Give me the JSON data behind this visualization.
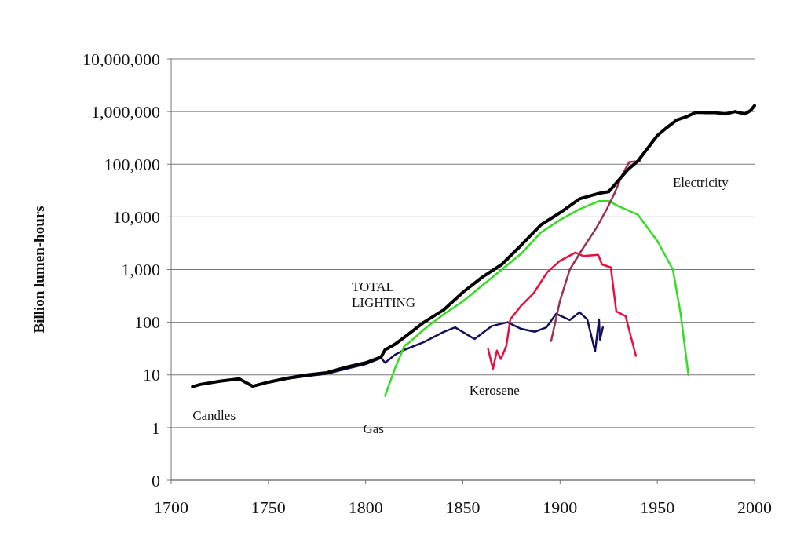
{
  "chart_data": {
    "type": "line",
    "ylabel": "Billion lumen-hours",
    "log": "y",
    "grid": "y",
    "marker": "none",
    "line_style": "solid",
    "xlim": [
      1700,
      2000
    ],
    "xticks": [
      1700,
      1750,
      1800,
      1850,
      1900,
      1950,
      2000
    ],
    "ylim": [
      0.1,
      10000000
    ],
    "yticks": [
      {
        "value": 0.1,
        "label": "0"
      },
      1,
      10,
      100,
      {
        "value": 1000,
        "label": "1,000"
      },
      {
        "value": 10000,
        "label": "10,000"
      },
      {
        "value": 100000,
        "label": "100,000"
      },
      {
        "value": 1000000,
        "label": "1,000,000"
      },
      {
        "value": 10000000,
        "label": "10,000,000"
      }
    ],
    "series": [
      {
        "name": "Candles",
        "color": "#10105a",
        "x": [
          1711,
          1715,
          1725,
          1735,
          1742,
          1750,
          1760,
          1770,
          1780,
          1790,
          1800,
          1808,
          1810,
          1815,
          1820,
          1830,
          1840,
          1846,
          1856,
          1865,
          1873,
          1880,
          1887,
          1893,
          1898,
          1905,
          1910,
          1914,
          1918,
          1920,
          1920.5,
          1922
        ],
        "values": [
          6,
          6.6,
          7.6,
          8.4,
          6.1,
          7.3,
          8.5,
          9.5,
          10.5,
          13,
          16,
          21,
          17,
          24,
          30,
          42,
          65,
          80,
          48,
          85,
          100,
          75,
          66,
          80,
          145,
          110,
          155,
          113,
          28,
          113,
          47,
          80
        ]
      },
      {
        "name": "Gas",
        "color": "#33dd22",
        "x": [
          1810,
          1815,
          1820,
          1822,
          1830,
          1840,
          1850,
          1860,
          1870,
          1880,
          1890,
          1900,
          1910,
          1920,
          1925,
          1930,
          1940,
          1950,
          1958,
          1962,
          1966
        ],
        "values": [
          4,
          13,
          36,
          40,
          73,
          140,
          250,
          500,
          1000,
          2000,
          5000,
          8800,
          14000,
          20000,
          20000,
          16000,
          11000,
          3500,
          1000,
          145,
          10
        ]
      },
      {
        "name": "Kerosene",
        "color": "#e81040",
        "x": [
          1863,
          1865.5,
          1867.5,
          1869.6,
          1872.4,
          1874.4,
          1879.7,
          1886.5,
          1893.4,
          1899.8,
          1907.9,
          1912,
          1919.6,
          1921.6,
          1926.1,
          1928.9,
          1933.7,
          1939
        ],
        "values": [
          31,
          13,
          29,
          20,
          36,
          113,
          200,
          360,
          890,
          1450,
          2100,
          1800,
          1900,
          1250,
          1100,
          160,
          130,
          23
        ]
      },
      {
        "name": "Electricity",
        "color": "#993355",
        "x": [
          1895.4,
          1900,
          1905,
          1910.7,
          1918.8,
          1924,
          1928,
          1932,
          1935.6,
          1941
        ],
        "values": [
          44,
          260,
          1000,
          2200,
          6300,
          14000,
          28000,
          63000,
          110000,
          115000
        ]
      },
      {
        "name": "TOTAL LIGHTING",
        "color": "#000000",
        "x": [
          1711,
          1715,
          1725,
          1735,
          1742,
          1750,
          1760,
          1770,
          1780,
          1790,
          1800,
          1808,
          1810,
          1815,
          1820,
          1830,
          1840,
          1850,
          1860,
          1870,
          1880,
          1890,
          1900,
          1910,
          1920,
          1925,
          1930,
          1935,
          1940,
          1945,
          1950,
          1955,
          1960,
          1965,
          1970,
          1975,
          1980,
          1985,
          1990,
          1995,
          1998,
          2000
        ],
        "values": [
          6,
          6.6,
          7.6,
          8.4,
          6.1,
          7.3,
          8.7,
          10,
          11,
          14,
          17,
          22,
          30,
          38,
          52,
          100,
          170,
          370,
          720,
          1250,
          2900,
          7000,
          12000,
          22000,
          28000,
          30000,
          49000,
          80000,
          115000,
          200000,
          350000,
          500000,
          690000,
          800000,
          970000,
          950000,
          950000,
          900000,
          1000000,
          900000,
          1050000,
          1300000
        ]
      }
    ]
  }
}
